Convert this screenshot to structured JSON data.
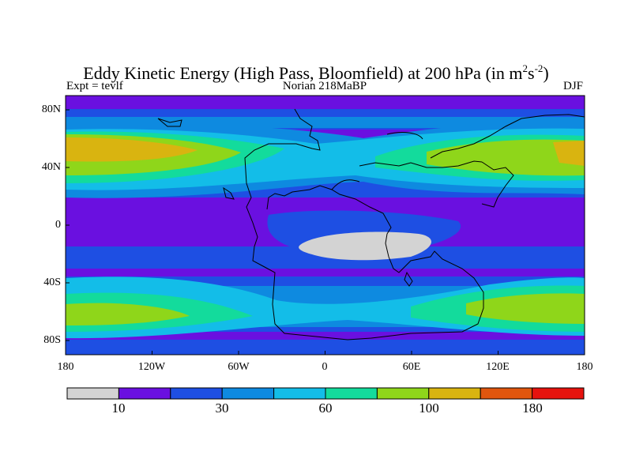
{
  "title": {
    "main": "Eddy Kinetic Energy (High Pass, Bloomfield) at 200 hPa (in m",
    "sup1": "2",
    "mid": "s",
    "sup2": "-2",
    "end": ")"
  },
  "subtitle": {
    "left": "Expt = tevlf",
    "center": "Norian 218MaBP",
    "right": "DJF"
  },
  "map_axes": {
    "lon_labels": [
      "180",
      "120W",
      "60W",
      "0",
      "60E",
      "120E",
      "180"
    ],
    "lat_labels": [
      "80N",
      "40N",
      "0",
      "40S",
      "80S"
    ]
  },
  "chart_data": {
    "type": "heatmap",
    "title": "Eddy Kinetic Energy (High Pass, Bloomfield) at 200 hPa (in m2s-2)",
    "xlim": [
      -180,
      180
    ],
    "ylim": [
      -90,
      90
    ],
    "lon_ticks": [
      -180,
      -120,
      -60,
      0,
      60,
      120,
      180
    ],
    "lat_ticks": [
      80,
      40,
      0,
      -40,
      -80
    ],
    "colorbar": {
      "colors": [
        "#d3d3d3",
        "#6a10e0",
        "#1e4fe3",
        "#0e8ae0",
        "#13bde8",
        "#13db9c",
        "#8fd61a",
        "#d9b410",
        "#e0560e",
        "#e6130e"
      ],
      "labels": [
        "10",
        "30",
        "60",
        "100",
        "180"
      ]
    }
  }
}
